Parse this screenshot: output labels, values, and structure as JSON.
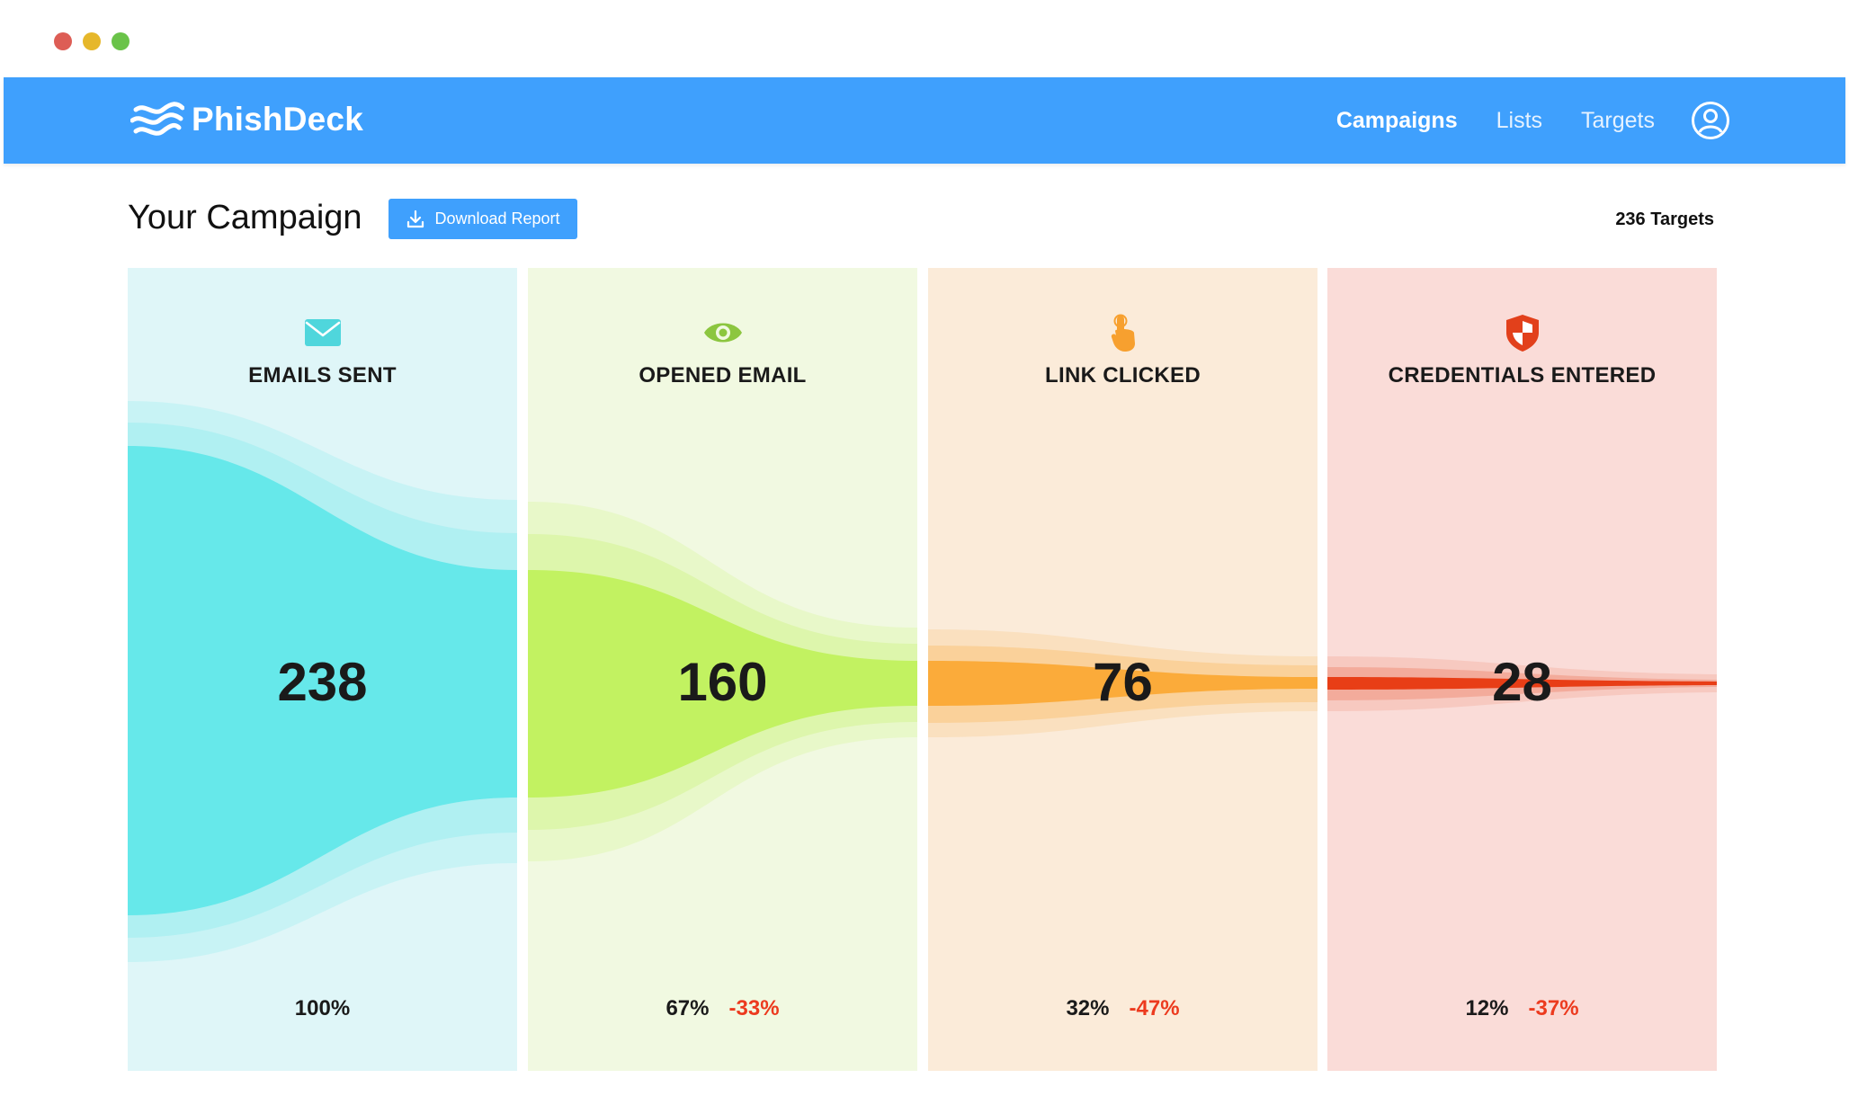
{
  "app": {
    "name": "PhishDeck"
  },
  "nav": {
    "items": [
      {
        "label": "Campaigns",
        "active": true
      },
      {
        "label": "Lists",
        "active": false
      },
      {
        "label": "Targets",
        "active": false
      }
    ],
    "user_icon": "user-circle-icon"
  },
  "header": {
    "title": "Your Campaign",
    "download_label": "Download Report",
    "targets_count": "236 Targets"
  },
  "colors": {
    "brand": "#3fa0fd",
    "delta_red": "#ec3a1e"
  },
  "stages": [
    {
      "label": "EMAILS SENT",
      "value": "238",
      "percent": "100%",
      "delta": "",
      "icon": "envelope-icon",
      "color": "#66e8ea",
      "bg": "#dff6f8"
    },
    {
      "label": "OPENED EMAIL",
      "value": "160",
      "percent": "67%",
      "delta": "-33%",
      "icon": "eye-icon",
      "color": "#c2f261",
      "bg": "#f1f9e1"
    },
    {
      "label": "LINK CLICKED",
      "value": "76",
      "percent": "32%",
      "delta": "-47%",
      "icon": "pointer-hand-icon",
      "color": "#fbab3a",
      "bg": "#fbebd9"
    },
    {
      "label": "CREDENTIALS ENTERED",
      "value": "28",
      "percent": "12%",
      "delta": "-37%",
      "icon": "shield-icon",
      "color": "#e83e16",
      "bg": "#fadcd8"
    }
  ]
}
